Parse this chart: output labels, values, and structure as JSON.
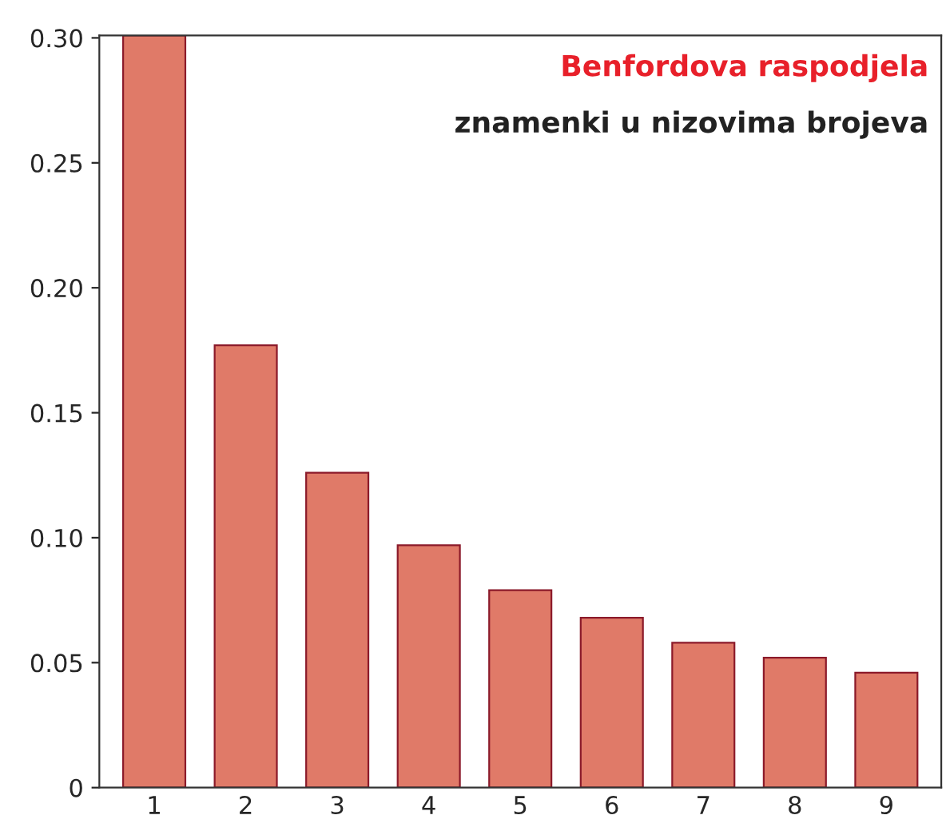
{
  "chart_data": {
    "type": "bar",
    "title": "Benfordova raspodjela",
    "subtitle": "znamenki u nizovima brojeva",
    "categories": [
      "1",
      "2",
      "3",
      "4",
      "5",
      "6",
      "7",
      "8",
      "9"
    ],
    "values": [
      0.301,
      0.177,
      0.126,
      0.097,
      0.079,
      0.068,
      0.058,
      0.052,
      0.046
    ],
    "color": "#e07a68",
    "ylim": [
      0,
      0.301
    ],
    "yticks": [
      0,
      {
        "value": 0.05,
        "label": "0.05"
      },
      {
        "value": 0.1,
        "label": "0.10"
      },
      {
        "value": 0.15,
        "label": "0.15"
      },
      {
        "value": 0.2,
        "label": "0.20"
      },
      {
        "value": 0.25,
        "label": "0.25"
      },
      {
        "value": 0.3,
        "label": "0.30"
      }
    ],
    "grid": false
  }
}
